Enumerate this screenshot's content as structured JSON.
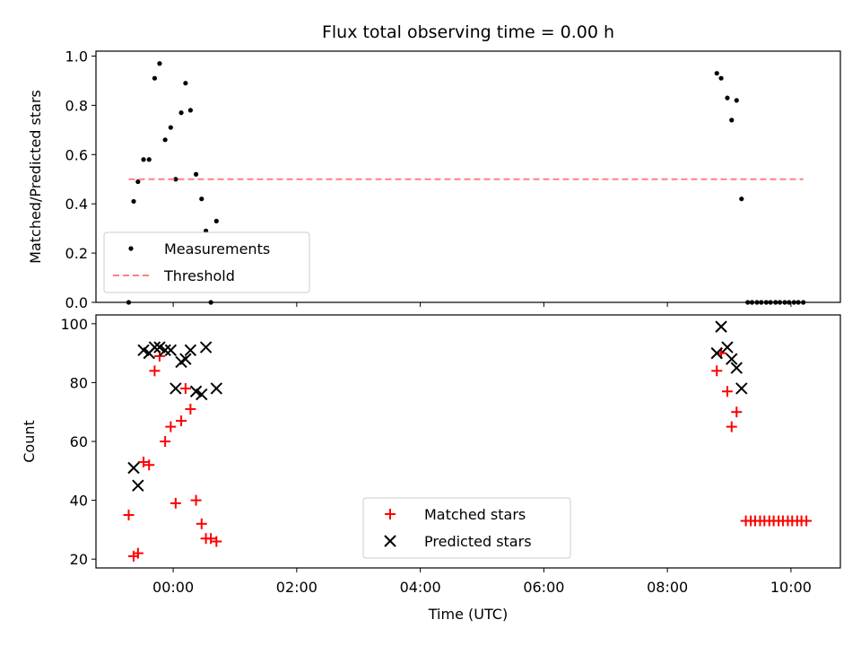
{
  "chart_data": [
    {
      "type": "scatter",
      "title": "Flux total observing time = 0.00 h",
      "xlabel": "",
      "ylabel": "Matched/Predicted stars",
      "xlim": [
        -1.25,
        10.8
      ],
      "ylim": [
        0,
        1.02
      ],
      "yticks": [
        0,
        0.2,
        0.4,
        0.6,
        0.8,
        1.0
      ],
      "ytick_labels": [
        "0.0",
        "0.2",
        "0.4",
        "0.6",
        "0.8",
        "1.0"
      ],
      "legend_position": "lower-left",
      "series": [
        {
          "name": "Measurements",
          "kind": "points",
          "color": "#000000",
          "x": [
            -0.72,
            -0.64,
            -0.57,
            -0.48,
            -0.39,
            -0.3,
            -0.22,
            -0.13,
            -0.04,
            0.04,
            0.13,
            0.2,
            0.28,
            0.37,
            0.46,
            0.53,
            0.61,
            0.7,
            8.8,
            8.87,
            8.97,
            9.04,
            9.12,
            9.2,
            9.3,
            9.37,
            9.45,
            9.52,
            9.6,
            9.67,
            9.75,
            9.82,
            9.9,
            9.97,
            10.05,
            10.12,
            10.2
          ],
          "y": [
            0.0,
            0.41,
            0.49,
            0.58,
            0.58,
            0.91,
            0.97,
            0.66,
            0.71,
            0.5,
            0.77,
            0.89,
            0.78,
            0.52,
            0.42,
            0.29,
            0.0,
            0.33,
            0.93,
            0.91,
            0.83,
            0.74,
            0.82,
            0.42,
            0,
            0,
            0,
            0,
            0,
            0,
            0,
            0,
            0,
            0,
            0,
            0,
            0
          ]
        },
        {
          "name": "Threshold",
          "kind": "dashed-line",
          "color": "#ff8080",
          "x": [
            -0.72,
            10.2
          ],
          "y": [
            0.5,
            0.5
          ]
        }
      ]
    },
    {
      "type": "scatter",
      "title": "",
      "xlabel": "Time (UTC)",
      "ylabel": "Count",
      "xlim": [
        -1.25,
        10.8
      ],
      "ylim": [
        17,
        103
      ],
      "yticks": [
        20,
        40,
        60,
        80,
        100
      ],
      "ytick_labels": [
        "20",
        "40",
        "60",
        "80",
        "100"
      ],
      "xticks": [
        0,
        2,
        4,
        6,
        8,
        10
      ],
      "xtick_labels": [
        "00:00",
        "02:00",
        "04:00",
        "06:00",
        "08:00",
        "10:00"
      ],
      "legend_position": "lower-center",
      "series": [
        {
          "name": "Matched stars",
          "marker": "+",
          "color": "#ff0000",
          "x": [
            -0.72,
            -0.64,
            -0.57,
            -0.48,
            -0.39,
            -0.3,
            -0.22,
            -0.13,
            -0.04,
            0.04,
            0.13,
            0.2,
            0.28,
            0.37,
            0.46,
            0.53,
            0.61,
            0.7,
            8.8,
            8.87,
            8.97,
            9.04,
            9.12,
            9.27,
            9.35,
            9.42,
            9.5,
            9.57,
            9.65,
            9.72,
            9.8,
            9.87,
            9.95,
            10.02,
            10.1,
            10.17,
            10.25
          ],
          "y": [
            35,
            21,
            22,
            53,
            52,
            84,
            89,
            60,
            65,
            39,
            67,
            78,
            71,
            40,
            32,
            27,
            27,
            26,
            84,
            90,
            77,
            65,
            70,
            33,
            33,
            33,
            33,
            33,
            33,
            33,
            33,
            33,
            33,
            33,
            33,
            33,
            33
          ]
        },
        {
          "name": "Predicted stars",
          "marker": "x",
          "color": "#000000",
          "x": [
            -0.64,
            -0.57,
            -0.48,
            -0.39,
            -0.3,
            -0.22,
            -0.13,
            -0.04,
            0.04,
            0.13,
            0.2,
            0.28,
            0.37,
            0.46,
            0.53,
            0.7,
            8.8,
            8.87,
            8.97,
            9.04,
            9.12,
            9.2
          ],
          "y": [
            51,
            45,
            91,
            90,
            92,
            92,
            91,
            91,
            78,
            87,
            88,
            91,
            77,
            76,
            92,
            78,
            90,
            99,
            92,
            88,
            85,
            78
          ]
        }
      ]
    }
  ]
}
